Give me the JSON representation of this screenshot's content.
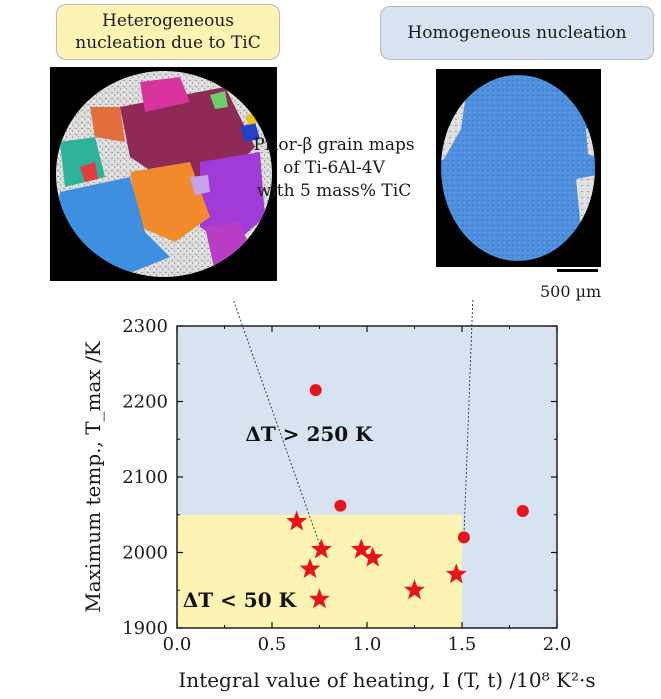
{
  "callouts": {
    "left": [
      "Heterogeneous",
      "nucleation due to TiC"
    ],
    "right": "Homogeneous nucleation"
  },
  "annotation": [
    "Prior-β grain maps",
    "of Ti-6Al-4V",
    "with 5 mass% TiC"
  ],
  "scale_bar": "500 µm",
  "colors": {
    "region_high": "#d8e3f1",
    "region_low": "#fdf3b3",
    "marker": "#e8141b"
  },
  "chart_data": {
    "type": "scatter",
    "xlabel": "Integral value of heating, I (T, t)  /10⁸ K²·s",
    "ylabel": "Maximum temp., T_max /K",
    "xlim": [
      0.0,
      2.0
    ],
    "ylim": [
      1900,
      2300
    ],
    "xticks": [
      "0.0",
      "0.5",
      "1.0",
      "1.5",
      "2.0"
    ],
    "yticks": [
      "1900",
      "2000",
      "2100",
      "2200",
      "2300"
    ],
    "grid": false,
    "regions": [
      {
        "label": "ΔT > 250 K",
        "x": [
          0.0,
          2.0
        ],
        "y": [
          1900,
          2300
        ],
        "color": "#d8e3f1"
      },
      {
        "label": "ΔT < 50 K",
        "x": [
          0.0,
          1.5
        ],
        "y": [
          1900,
          2050
        ],
        "color": "#fdf3b3"
      }
    ],
    "series": [
      {
        "marker": "circle",
        "x": [
          0.73,
          0.86,
          1.51,
          1.82
        ],
        "y": [
          2215,
          2062,
          2020,
          2055
        ]
      },
      {
        "marker": "star",
        "x": [
          0.63,
          0.7,
          0.75,
          0.76,
          0.97,
          1.03,
          1.25,
          1.47
        ],
        "y": [
          2041,
          1978,
          1938,
          2004,
          2004,
          1993,
          1950,
          1971
        ]
      }
    ]
  }
}
